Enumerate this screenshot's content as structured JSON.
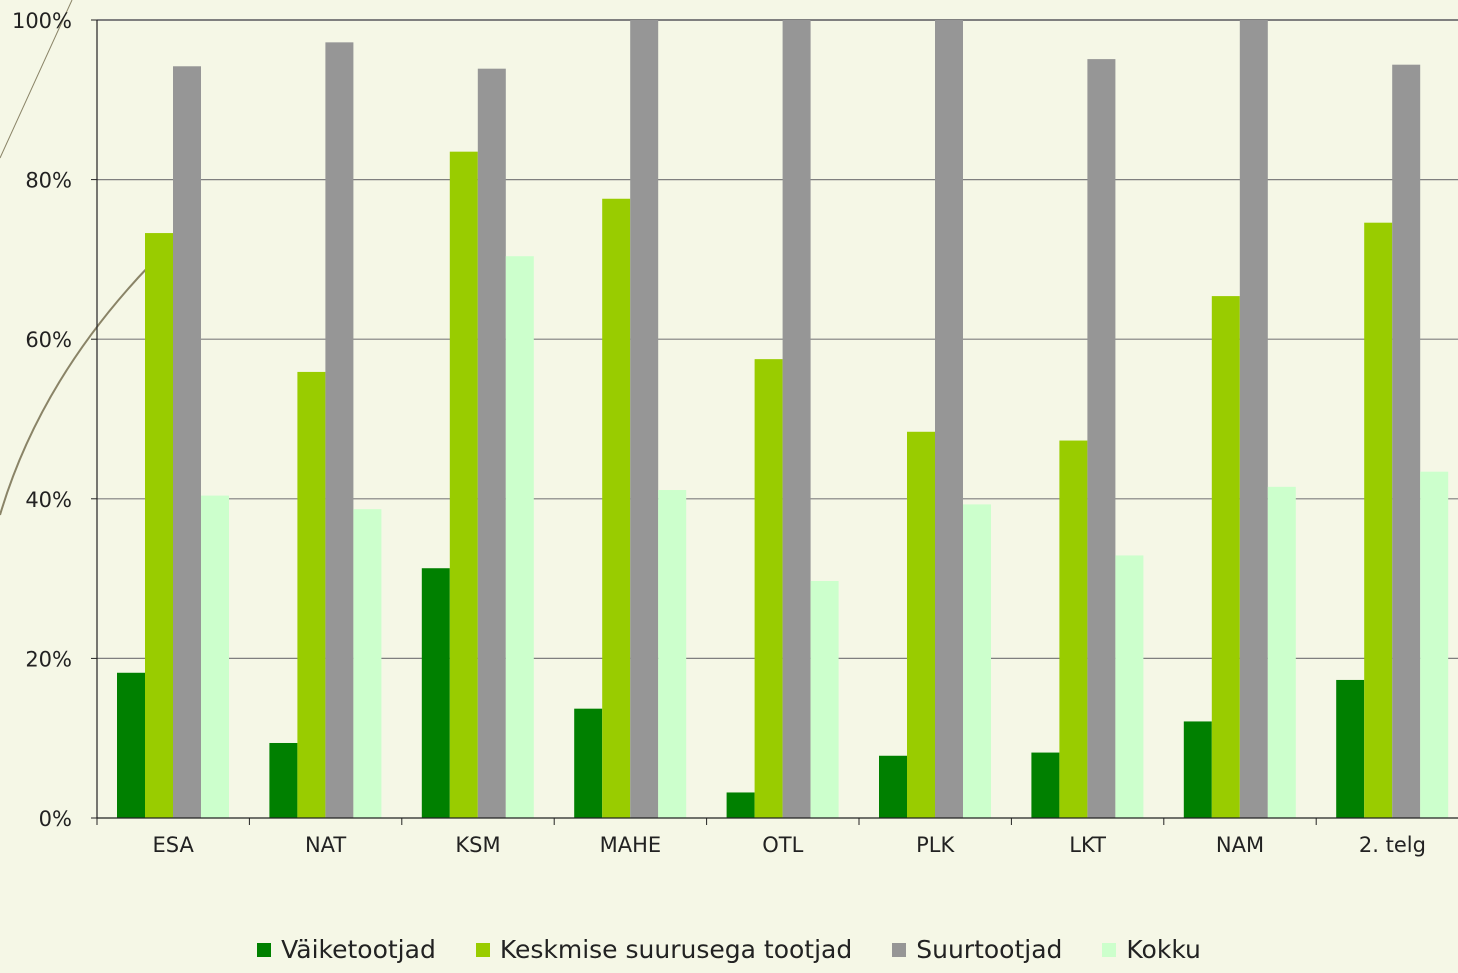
{
  "colors": {
    "background": "#f5f7e6",
    "gridline": "#7f7f7f",
    "axis": "#222222",
    "decor_curve": "#8a8467"
  },
  "chart_data": {
    "type": "bar",
    "title": "",
    "xlabel": "",
    "ylabel": "",
    "ylim": [
      0,
      100
    ],
    "y_unit": "%",
    "y_ticks": [
      "0%",
      "20%",
      "40%",
      "60%",
      "80%",
      "100%"
    ],
    "grid": true,
    "legend_position": "bottom",
    "categories": [
      "ESA",
      "NAT",
      "KSM",
      "MAHE",
      "OTL",
      "PLK",
      "LKT",
      "NAM",
      "2. telg"
    ],
    "series": [
      {
        "name": "Väiketootjad",
        "color": "#008000",
        "values": [
          18.2,
          9.4,
          31.3,
          13.7,
          3.2,
          7.8,
          8.2,
          12.1,
          17.3
        ]
      },
      {
        "name": "Keskmise suurusega tootjad",
        "color": "#99cc00",
        "values": [
          73.3,
          55.9,
          83.5,
          77.6,
          57.5,
          48.4,
          47.3,
          65.4,
          74.6
        ]
      },
      {
        "name": "Suurtootjad",
        "color": "#969696",
        "values": [
          94.2,
          97.2,
          93.9,
          100,
          100,
          100,
          95.1,
          100,
          94.4
        ]
      },
      {
        "name": "Kokku",
        "color": "#ccffcc",
        "values": [
          40.4,
          38.7,
          70.4,
          41.1,
          29.7,
          39.3,
          32.9,
          41.5,
          43.4
        ]
      }
    ]
  }
}
